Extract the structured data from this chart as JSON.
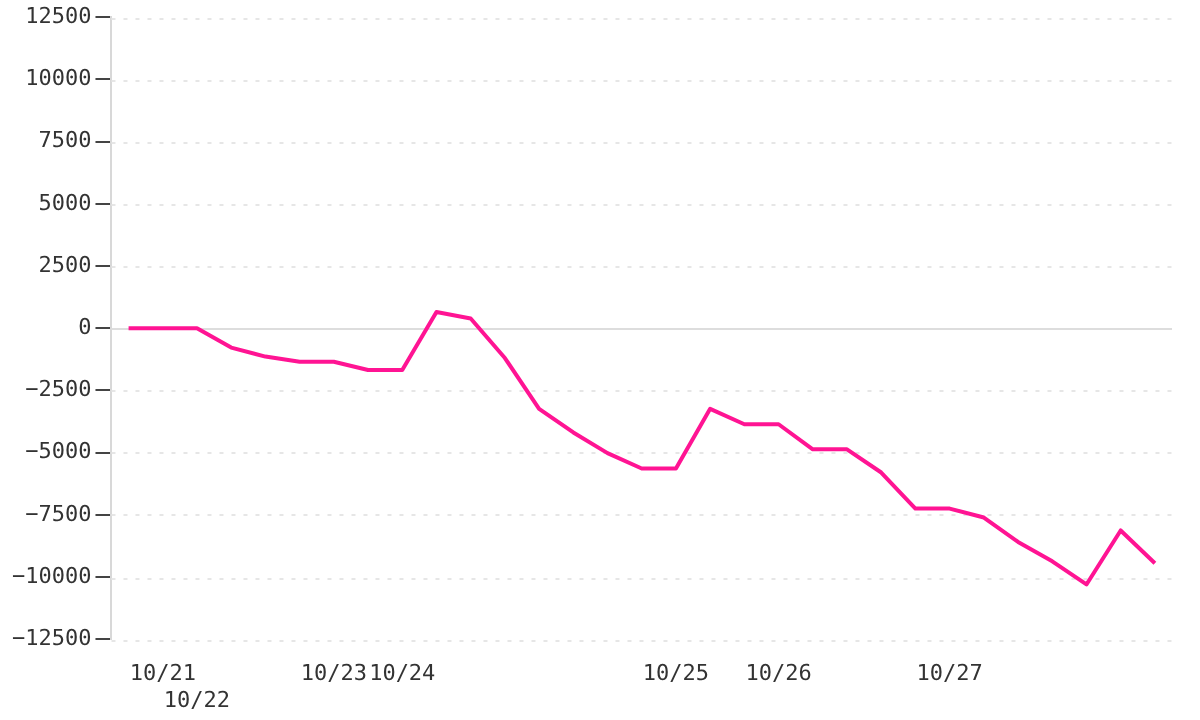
{
  "chart_data": {
    "type": "line",
    "categories": [
      null,
      "10/21",
      "10/22",
      null,
      null,
      null,
      "10/23",
      null,
      "10/24",
      null,
      null,
      null,
      null,
      null,
      null,
      null,
      "10/25",
      null,
      null,
      "10/26",
      null,
      null,
      null,
      null,
      "10/27",
      null,
      null,
      null,
      null,
      null,
      null
    ],
    "series": [
      {
        "color": "#ff1493",
        "values": [
          0,
          0,
          0,
          -780,
          -1140,
          -1350,
          -1350,
          -1680,
          -1680,
          650,
          390,
          -1200,
          -3240,
          -4190,
          -5020,
          -5640,
          -5640,
          -3240,
          -3860,
          -3860,
          -4870,
          -4870,
          -5800,
          -7250,
          -7250,
          -7610,
          -8590,
          -9370,
          -10300,
          -8130,
          -9450
        ]
      }
    ],
    "ylim": [
      -12500,
      12500
    ],
    "yticks": [
      -12500,
      -10000,
      -7500,
      -5000,
      -2500,
      0,
      2500,
      5000,
      7500,
      10000,
      12500
    ],
    "grid": "y",
    "legend": false,
    "marker": "none",
    "line_style": "solid"
  }
}
